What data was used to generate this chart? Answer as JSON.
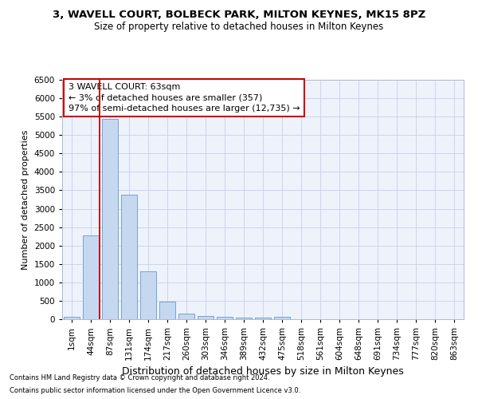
{
  "title1": "3, WAVELL COURT, BOLBECK PARK, MILTON KEYNES, MK15 8PZ",
  "title2": "Size of property relative to detached houses in Milton Keynes",
  "xlabel": "Distribution of detached houses by size in Milton Keynes",
  "ylabel": "Number of detached properties",
  "annotation_line1": "3 WAVELL COURT: 63sqm",
  "annotation_line2": "← 3% of detached houses are smaller (357)",
  "annotation_line3": "97% of semi-detached houses are larger (12,735) →",
  "footer1": "Contains HM Land Registry data © Crown copyright and database right 2024.",
  "footer2": "Contains public sector information licensed under the Open Government Licence v3.0.",
  "bar_color": "#c5d8f0",
  "bar_edge_color": "#6699cc",
  "bg_color": "#eef2fb",
  "grid_color": "#c8d0e8",
  "annotation_box_color": "#cc0000",
  "vline_color": "#cc0000",
  "categories": [
    "1sqm",
    "44sqm",
    "87sqm",
    "131sqm",
    "174sqm",
    "217sqm",
    "260sqm",
    "303sqm",
    "346sqm",
    "389sqm",
    "432sqm",
    "475sqm",
    "518sqm",
    "561sqm",
    "604sqm",
    "648sqm",
    "691sqm",
    "734sqm",
    "777sqm",
    "820sqm",
    "863sqm"
  ],
  "values": [
    70,
    2280,
    5430,
    3390,
    1310,
    480,
    160,
    90,
    70,
    45,
    35,
    65,
    5,
    2,
    1,
    1,
    1,
    1,
    1,
    1,
    1
  ],
  "ylim": [
    0,
    6500
  ],
  "yticks": [
    0,
    500,
    1000,
    1500,
    2000,
    2500,
    3000,
    3500,
    4000,
    4500,
    5000,
    5500,
    6000,
    6500
  ],
  "vline_x": 1.47,
  "title1_fontsize": 9.5,
  "title2_fontsize": 8.5,
  "xlabel_fontsize": 9,
  "ylabel_fontsize": 8,
  "tick_fontsize": 7.5,
  "annot_fontsize": 8,
  "footer_fontsize": 6
}
